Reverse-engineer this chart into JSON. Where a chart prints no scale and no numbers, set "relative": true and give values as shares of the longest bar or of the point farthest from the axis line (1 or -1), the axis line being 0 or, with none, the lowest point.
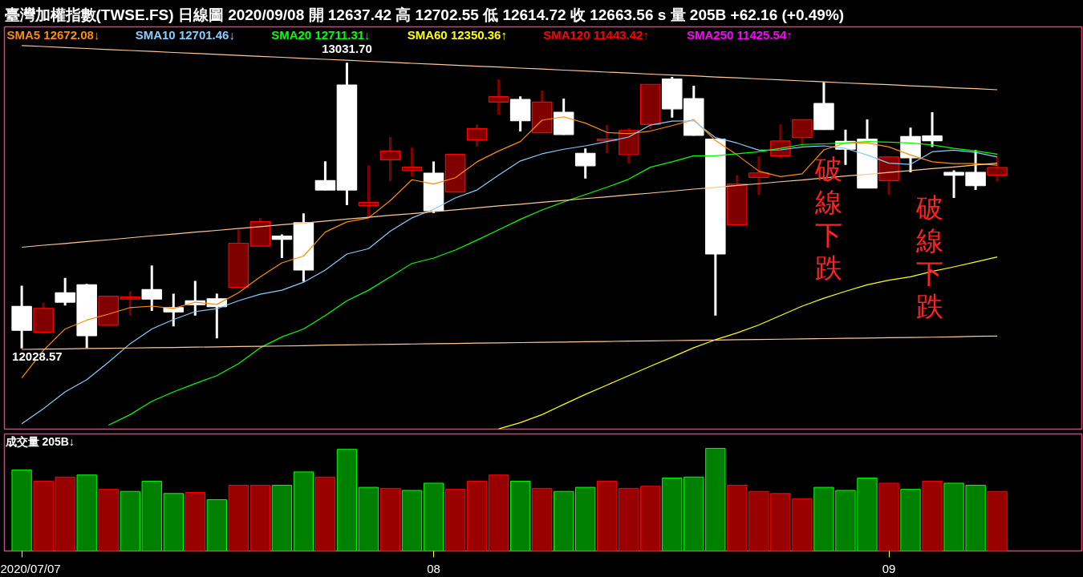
{
  "chart_data": [
    {
      "type": "candlestick",
      "title": "臺灣加權指數(TWSE.FS)    日線圖  2020/09/08  開 12637.42  高 12702.55  低 12614.72  收 12663.56 s  量 205B   +62.16 (+0.49%)",
      "categories": [
        "2020/07/07",
        null,
        null,
        null,
        null,
        null,
        null,
        null,
        null,
        null,
        null,
        null,
        null,
        null,
        null,
        null,
        null,
        null,
        null,
        "08",
        null,
        null,
        null,
        null,
        null,
        null,
        null,
        null,
        null,
        null,
        null,
        null,
        null,
        null,
        null,
        null,
        null,
        null,
        null,
        null,
        "09",
        null,
        null,
        null,
        null,
        null
      ],
      "ohlc": [
        [
          12176,
          12249,
          12028.57,
          12092
        ],
        [
          12085,
          12189,
          12081,
          12169
        ],
        [
          12224,
          12276,
          12179,
          12191
        ],
        [
          12252,
          12255,
          12030,
          12073
        ],
        [
          12110,
          12214,
          12109,
          12212
        ],
        [
          12202,
          12229,
          12144,
          12209
        ],
        [
          12235,
          12320,
          12160,
          12202
        ],
        [
          12172,
          12221,
          12106,
          12157
        ],
        [
          12196,
          12266,
          12144,
          12182
        ],
        [
          12203,
          12221,
          12064,
          12175
        ],
        [
          12243,
          12446,
          12241,
          12398
        ],
        [
          12388,
          12486,
          12387,
          12474
        ],
        [
          12423,
          12429,
          12346,
          12412
        ],
        [
          12470,
          12503,
          12263,
          12304
        ],
        [
          12618,
          12686,
          12584,
          12585
        ],
        [
          12954,
          13031.7,
          12532,
          12585
        ],
        [
          12530,
          12671,
          12487,
          12541
        ],
        [
          12691,
          12771,
          12616,
          12722
        ],
        [
          12653,
          12734,
          12632,
          12665
        ],
        [
          12644,
          12685,
          12504,
          12512
        ],
        [
          12578,
          12711,
          12577,
          12710
        ],
        [
          12761,
          12815,
          12738,
          12801
        ],
        [
          12894,
          12973,
          12850,
          12913
        ],
        [
          12903,
          12914,
          12791,
          12828
        ],
        [
          12786,
          12934,
          12785,
          12894
        ],
        [
          12858,
          12906,
          12779,
          12780
        ],
        [
          12714,
          12731,
          12625,
          12670
        ],
        [
          12758,
          12813,
          12715,
          12764
        ],
        [
          12709,
          12802,
          12679,
          12794
        ],
        [
          12815,
          12956,
          12800,
          12956
        ],
        [
          12975,
          12982,
          12839,
          12870
        ],
        [
          12906,
          12951,
          12776,
          12777
        ],
        [
          12764,
          12765,
          12144,
          12360
        ],
        [
          12463,
          12637,
          12462,
          12606
        ],
        [
          12629,
          12703,
          12567,
          12645
        ],
        [
          12705,
          12815,
          12698,
          12757
        ],
        [
          12769,
          12833,
          12740,
          12832
        ],
        [
          12889,
          12964,
          12796,
          12797
        ],
        [
          12756,
          12797,
          12673,
          12728
        ],
        [
          12764,
          12833,
          12591,
          12592
        ],
        [
          12618,
          12702,
          12567,
          12701
        ],
        [
          12773,
          12804,
          12647,
          12698
        ],
        [
          12775,
          12858,
          12736,
          12758
        ],
        [
          12647,
          12654,
          12557,
          12637
        ],
        [
          12647,
          12725,
          12585,
          12600
        ],
        [
          12637.42,
          12702.55,
          12614.72,
          12663.56
        ]
      ],
      "colors": [
        "#ffffff",
        "#800000",
        "#ffffff",
        "#ffffff",
        "#800000",
        "#800000",
        "#ffffff",
        "#ffffff",
        "#ffffff",
        "#ffffff",
        "#800000",
        "#800000",
        "#ffffff",
        "#ffffff",
        "#ffffff",
        "#ffffff",
        "#800000",
        "#800000",
        "#800000",
        "#ffffff",
        "#800000",
        "#800000",
        "#800000",
        "#ffffff",
        "#800000",
        "#ffffff",
        "#ffffff",
        "#800000",
        "#800000",
        "#800000",
        "#ffffff",
        "#ffffff",
        "#ffffff",
        "#800000",
        "#800000",
        "#800000",
        "#800000",
        "#ffffff",
        "#ffffff",
        "#ffffff",
        "#800000",
        "#ffffff",
        "#ffffff",
        "#ffffff",
        "#ffffff",
        "#800000"
      ],
      "series": [
        {
          "type": "line",
          "name": "SMA5 12672.08↓",
          "color": "#ff8c00",
          "values": [
            11925,
            12022,
            12097,
            12128,
            12149,
            12172,
            12177,
            12169,
            12191,
            12183,
            12224,
            12280,
            12329,
            12353,
            12437,
            12473,
            12487,
            12548,
            12621,
            12606,
            12628,
            12684,
            12722,
            12755,
            12830,
            12842,
            12820,
            12787,
            12783,
            12792,
            12811,
            12832,
            12759,
            12708,
            12651,
            12632,
            12642,
            12726,
            12750,
            12750,
            12736,
            12708,
            12684,
            12678,
            12678,
            12672
          ]
        },
        {
          "type": "line",
          "name": "SMA10 12701.46↓",
          "color": "#87cefa",
          "values": [
            11764,
            11817,
            11876,
            11919,
            11980,
            12045,
            12097,
            12130,
            12158,
            12168,
            12196,
            12219,
            12233,
            12261,
            12304,
            12360,
            12379,
            12440,
            12487,
            12517,
            12557,
            12585,
            12637,
            12687,
            12712,
            12728,
            12740,
            12755,
            12771,
            12813,
            12827,
            12828,
            12769,
            12750,
            12725,
            12726,
            12736,
            12740,
            12731,
            12708,
            12679,
            12675,
            12719,
            12725,
            12717,
            12701
          ]
        },
        {
          "type": "line",
          "name": "SMA20 12711.31↓",
          "color": "#00ff00",
          "values": [
            null,
            null,
            null,
            null,
            11759,
            11796,
            11843,
            11876,
            11905,
            11933,
            11975,
            12031,
            12069,
            12097,
            12144,
            12196,
            12233,
            12280,
            12327,
            12346,
            12374,
            12409,
            12445,
            12482,
            12515,
            12543,
            12569,
            12595,
            12623,
            12665,
            12684,
            12705,
            12705,
            12712,
            12719,
            12731,
            12745,
            12747,
            12750,
            12755,
            12753,
            12750,
            12743,
            12731,
            12722,
            12711
          ]
        },
        {
          "type": "line",
          "name": "SMA60 12350.36↑",
          "color": "#ffff00",
          "values": [
            null,
            null,
            null,
            null,
            null,
            null,
            null,
            null,
            null,
            null,
            null,
            null,
            null,
            null,
            null,
            null,
            null,
            null,
            null,
            null,
            null,
            null,
            11746,
            11768,
            11796,
            11832,
            11867,
            11900,
            11933,
            11966,
            11998,
            12031,
            12059,
            12083,
            12111,
            12144,
            12177,
            12205,
            12229,
            12252,
            12268,
            12280,
            12299,
            12315,
            12332,
            12350
          ]
        },
        {
          "type": "line",
          "name": "SMA120 11443.42↑",
          "color": "#ff0000",
          "values": [
            null,
            null,
            null,
            null,
            null,
            null,
            null,
            null,
            null,
            null,
            null,
            null,
            null,
            null,
            null,
            null,
            null,
            null,
            null,
            null,
            null,
            null,
            null,
            null,
            null,
            null,
            null,
            null,
            null,
            null,
            null,
            null,
            null,
            null,
            null,
            null,
            null,
            null,
            null,
            null,
            null,
            null,
            null,
            null,
            null,
            null
          ]
        },
        {
          "type": "line",
          "name": "SMA250 11425.54↑",
          "color": "#ff00ff",
          "values": [
            null,
            null,
            null,
            null,
            null,
            null,
            null,
            null,
            null,
            null,
            null,
            null,
            null,
            null,
            null,
            null,
            null,
            null,
            null,
            null,
            null,
            null,
            null,
            null,
            null,
            null,
            null,
            null,
            null,
            null,
            null,
            null,
            null,
            null,
            null,
            null,
            null,
            null,
            null,
            null,
            null,
            null,
            null,
            null,
            null,
            null
          ]
        },
        {
          "type": "line",
          "color": "#ffc896",
          "values": [
            13092,
            13089,
            13085,
            13082,
            13078,
            13075,
            13072,
            13068,
            13065,
            13061,
            13058,
            13054,
            13051,
            13047,
            13044,
            13041,
            13037,
            13034,
            13030,
            13027,
            13023,
            13020,
            13017,
            13013,
            13010,
            13006,
            13003,
            12999,
            12996,
            12992,
            12989,
            12986,
            12982,
            12979,
            12975,
            12972,
            12968,
            12965,
            12961,
            12958,
            12955,
            12951,
            12948,
            12944,
            12941,
            12937
          ]
        },
        {
          "type": "line",
          "color": "#ffc896",
          "values": [
            12384,
            12391,
            12397,
            12404,
            12410,
            12417,
            12424,
            12430,
            12437,
            12443,
            12450,
            12456,
            12463,
            12469,
            12476,
            12483,
            12489,
            12496,
            12502,
            12509,
            12515,
            12522,
            12529,
            12535,
            12542,
            12548,
            12555,
            12561,
            12568,
            12574,
            12581,
            12588,
            12594,
            12601,
            12607,
            12614,
            12620,
            12627,
            12634,
            12640,
            12647,
            12653,
            12660,
            12666,
            12673,
            12679
          ]
        },
        {
          "type": "line",
          "color": "#ffc896",
          "values": [
            12025,
            12026,
            12027,
            12028,
            12029,
            12030,
            12031,
            12032,
            12033,
            12034,
            12035,
            12036,
            12037,
            12038,
            12040,
            12041,
            12042,
            12043,
            12044,
            12045,
            12046,
            12047,
            12048,
            12049,
            12050,
            12051,
            12052,
            12053,
            12054,
            12055,
            12056,
            12057,
            12058,
            12059,
            12060,
            12061,
            12062,
            12063,
            12064,
            12065,
            12066,
            12067,
            12068,
            12069,
            12071,
            12072
          ]
        }
      ],
      "annotations": [
        "13031.70",
        "12028.57",
        "破線下跌",
        "破線下跌"
      ],
      "ylim": [
        11745,
        13158
      ],
      "tick_labels": false,
      "legend": "top left"
    },
    {
      "type": "bar",
      "title": "成交量 205B↓",
      "relative": true,
      "categories": [
        "2020/07/07",
        null,
        null,
        null,
        null,
        null,
        null,
        null,
        null,
        null,
        null,
        null,
        null,
        null,
        null,
        null,
        null,
        null,
        null,
        "08",
        null,
        null,
        null,
        null,
        null,
        null,
        null,
        null,
        null,
        null,
        null,
        null,
        null,
        null,
        null,
        null,
        null,
        null,
        null,
        null,
        "09",
        null,
        null,
        null,
        null,
        null
      ],
      "values": [
        0.79,
        0.68,
        0.72,
        0.74,
        0.6,
        0.58,
        0.68,
        0.56,
        0.57,
        0.5,
        0.64,
        0.64,
        0.64,
        0.77,
        0.72,
        0.99,
        0.62,
        0.61,
        0.59,
        0.66,
        0.6,
        0.68,
        0.74,
        0.68,
        0.61,
        0.58,
        0.62,
        0.68,
        0.61,
        0.63,
        0.71,
        0.72,
        1,
        0.64,
        0.58,
        0.56,
        0.51,
        0.62,
        0.59,
        0.71,
        0.66,
        0.6,
        0.68,
        0.66,
        0.64,
        0.58
      ],
      "colors": [
        "#008000",
        "#990000",
        "#990000",
        "#008000",
        "#990000",
        "#008000",
        "#008000",
        "#008000",
        "#990000",
        "#008000",
        "#990000",
        "#990000",
        "#008000",
        "#008000",
        "#990000",
        "#008000",
        "#008000",
        "#990000",
        "#008000",
        "#008000",
        "#990000",
        "#990000",
        "#990000",
        "#008000",
        "#990000",
        "#008000",
        "#008000",
        "#990000",
        "#990000",
        "#990000",
        "#008000",
        "#008000",
        "#008000",
        "#990000",
        "#990000",
        "#990000",
        "#990000",
        "#008000",
        "#008000",
        "#008000",
        "#990000",
        "#008000",
        "#990000",
        "#008000",
        "#008000",
        "#990000"
      ],
      "tick_labels": "x"
    }
  ]
}
